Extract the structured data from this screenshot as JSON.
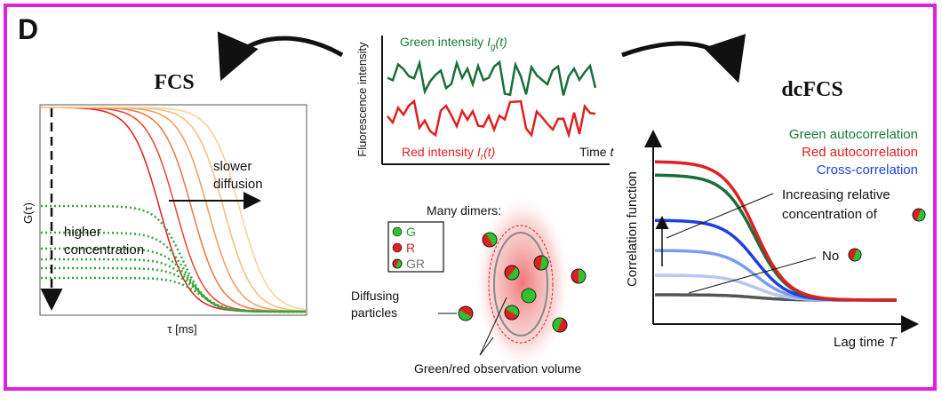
{
  "panel_label": "D",
  "fcs": {
    "title": "FCS",
    "y_label": "G(τ)",
    "x_label": "τ [ms]",
    "arrow_label": [
      "slower",
      "diffusion"
    ],
    "concentration_label": [
      "higher",
      "concentration"
    ]
  },
  "traces": {
    "y_label": "Fluorescence intensity",
    "green_label": {
      "text": "Green intensity",
      "symbol": "I",
      "sub": "g",
      "arg": "(t)"
    },
    "red_label": {
      "text": "Red intensity",
      "symbol": "I",
      "sub": "r",
      "arg": "(t)"
    },
    "x_label": {
      "text": "Time",
      "symbol": "t"
    }
  },
  "schematic": {
    "title": "Many dimers:",
    "legend": [
      "G",
      "R",
      "GR"
    ],
    "particles_label": [
      "Diffusing",
      "particles"
    ],
    "volume_label": "Green/red observation volume"
  },
  "dcfcs": {
    "title": "dcFCS",
    "legend": [
      "Green autocorrelation",
      "Red autocorrelation",
      "Cross-correlation"
    ],
    "y_label": "Correlation function",
    "increase_label": [
      "Increasing relative",
      "concentration of"
    ],
    "no_label": "No",
    "x_label": {
      "text": "Lag time",
      "symbol": "T"
    }
  }
}
